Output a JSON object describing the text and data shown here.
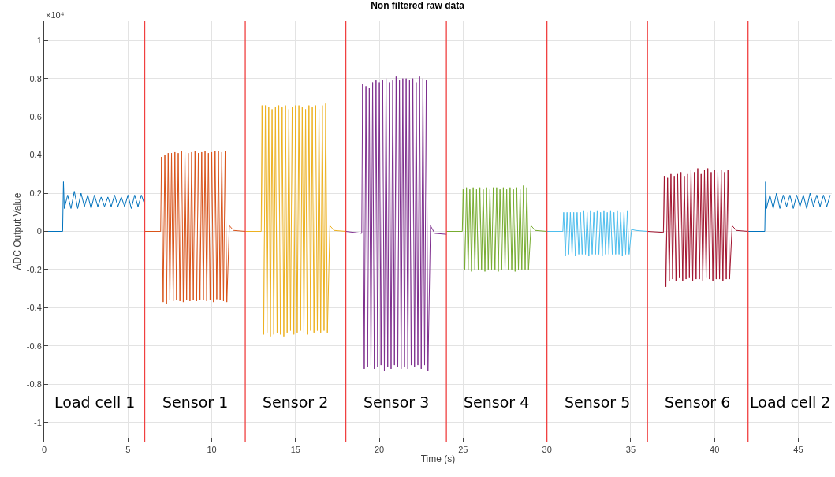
{
  "chart_data": {
    "type": "line",
    "title": "Non filtered raw data",
    "xlabel": "Time (s)",
    "ylabel": "ADC Output Value",
    "xlim": [
      0,
      47
    ],
    "xticks": [
      0,
      5,
      10,
      15,
      20,
      25,
      30,
      35,
      40,
      45
    ],
    "ylim": [
      -1.1,
      1.1
    ],
    "yticks": [
      -1,
      -0.8,
      -0.6,
      -0.4,
      -0.2,
      0,
      0.2,
      0.4,
      0.6,
      0.8,
      1
    ],
    "grid": true,
    "marker": "none",
    "line_style": "solid",
    "series": [
      {
        "color": "#0072bd",
        "x": [
          0,
          1.1,
          1.15,
          1.2,
          1.4,
          1.6,
          1.8,
          2.0,
          2.2,
          2.4,
          2.6,
          2.8,
          3.0,
          3.2,
          3.4,
          3.6,
          3.8,
          4.0,
          4.2,
          4.4,
          4.6,
          4.8,
          5.0,
          5.2,
          5.4,
          5.6,
          5.8,
          6.0
        ],
        "values": [
          0,
          0,
          0.26,
          0.12,
          0.19,
          0.12,
          0.21,
          0.12,
          0.2,
          0.13,
          0.19,
          0.12,
          0.19,
          0.13,
          0.18,
          0.13,
          0.18,
          0.13,
          0.19,
          0.13,
          0.18,
          0.13,
          0.19,
          0.12,
          0.19,
          0.13,
          0.19,
          0.14
        ]
      },
      {
        "color": "#d95319",
        "x": [
          6,
          6.95,
          7,
          7.1,
          7.2,
          7.3,
          7.4,
          7.5,
          7.6,
          7.7,
          7.8,
          7.9,
          8,
          8.1,
          8.2,
          8.3,
          8.4,
          8.5,
          8.6,
          8.7,
          8.8,
          8.9,
          9,
          9.1,
          9.2,
          9.3,
          9.4,
          9.5,
          9.6,
          9.7,
          9.8,
          9.9,
          10,
          10.1,
          10.2,
          10.3,
          10.4,
          10.5,
          10.6,
          10.7,
          10.8,
          10.9,
          11.05,
          11.3,
          12
        ],
        "values": [
          0,
          0,
          0.39,
          -0.37,
          0.4,
          -0.38,
          0.41,
          -0.36,
          0.41,
          -0.365,
          0.415,
          -0.36,
          0.41,
          -0.365,
          0.42,
          -0.37,
          0.415,
          -0.36,
          0.41,
          -0.365,
          0.415,
          -0.36,
          0.42,
          -0.365,
          0.41,
          -0.36,
          0.415,
          -0.36,
          0.42,
          -0.365,
          0.41,
          -0.36,
          0.415,
          -0.37,
          0.42,
          -0.355,
          0.42,
          -0.36,
          0.415,
          -0.365,
          0.42,
          -0.37,
          0.03,
          0.005,
          0
        ]
      },
      {
        "color": "#edb120",
        "x": [
          12,
          12.95,
          13,
          13.1,
          13.2,
          13.3,
          13.4,
          13.5,
          13.6,
          13.7,
          13.8,
          13.9,
          14,
          14.1,
          14.2,
          14.3,
          14.4,
          14.5,
          14.6,
          14.7,
          14.8,
          14.9,
          15,
          15.1,
          15.2,
          15.3,
          15.4,
          15.5,
          15.6,
          15.7,
          15.8,
          15.9,
          16,
          16.1,
          16.2,
          16.3,
          16.4,
          16.5,
          16.6,
          16.7,
          16.8,
          16.9,
          17.05,
          17.3,
          18
        ],
        "values": [
          0,
          0,
          0.66,
          -0.54,
          0.66,
          -0.53,
          0.65,
          -0.55,
          0.64,
          -0.54,
          0.65,
          -0.53,
          0.66,
          -0.54,
          0.65,
          -0.55,
          0.66,
          -0.53,
          0.64,
          -0.52,
          0.65,
          -0.54,
          0.66,
          -0.53,
          0.66,
          -0.52,
          0.65,
          -0.53,
          0.64,
          -0.54,
          0.66,
          -0.52,
          0.65,
          -0.53,
          0.66,
          -0.52,
          0.64,
          -0.53,
          0.66,
          -0.52,
          0.67,
          -0.53,
          0.03,
          0.005,
          0
        ]
      },
      {
        "color": "#7e2f8e",
        "x": [
          18,
          18.95,
          19,
          19.1,
          19.2,
          19.3,
          19.4,
          19.5,
          19.6,
          19.7,
          19.8,
          19.9,
          20,
          20.1,
          20.2,
          20.3,
          20.4,
          20.5,
          20.6,
          20.7,
          20.8,
          20.9,
          21,
          21.1,
          21.2,
          21.3,
          21.4,
          21.5,
          21.6,
          21.7,
          21.8,
          21.9,
          22,
          22.1,
          22.2,
          22.3,
          22.4,
          22.5,
          22.6,
          22.7,
          22.8,
          22.9,
          23.05,
          23.3,
          24
        ],
        "values": [
          0,
          -0.01,
          0.77,
          -0.72,
          0.76,
          -0.71,
          0.75,
          -0.7,
          0.78,
          -0.72,
          0.79,
          -0.71,
          0.78,
          -0.7,
          0.79,
          -0.73,
          0.8,
          -0.71,
          0.78,
          -0.72,
          0.79,
          -0.7,
          0.81,
          -0.71,
          0.79,
          -0.72,
          0.8,
          -0.71,
          0.8,
          -0.72,
          0.79,
          -0.7,
          0.8,
          -0.71,
          0.78,
          -0.7,
          0.81,
          -0.72,
          0.8,
          -0.7,
          0.79,
          -0.73,
          0.03,
          -0.01,
          -0.015
        ]
      },
      {
        "color": "#77ac30",
        "x": [
          24,
          24.95,
          25,
          25.1,
          25.2,
          25.3,
          25.4,
          25.5,
          25.6,
          25.7,
          25.8,
          25.9,
          26,
          26.1,
          26.2,
          26.3,
          26.4,
          26.5,
          26.6,
          26.7,
          26.8,
          26.9,
          27,
          27.1,
          27.2,
          27.3,
          27.4,
          27.5,
          27.6,
          27.7,
          27.8,
          27.9,
          28,
          28.1,
          28.2,
          28.3,
          28.4,
          28.5,
          28.6,
          28.7,
          28.8,
          28.9,
          29.05,
          29.3,
          30
        ],
        "values": [
          0,
          0,
          0.22,
          -0.2,
          0.23,
          -0.2,
          0.22,
          -0.21,
          0.23,
          -0.2,
          0.22,
          -0.2,
          0.23,
          -0.2,
          0.22,
          -0.21,
          0.23,
          -0.2,
          0.22,
          -0.2,
          0.23,
          -0.2,
          0.23,
          -0.21,
          0.22,
          -0.2,
          0.23,
          -0.2,
          0.22,
          -0.2,
          0.23,
          -0.2,
          0.22,
          -0.21,
          0.23,
          -0.2,
          0.22,
          -0.2,
          0.24,
          -0.2,
          0.23,
          -0.2,
          0.03,
          0.005,
          0
        ]
      },
      {
        "color": "#4dbeee",
        "x": [
          30,
          30.95,
          31,
          31.1,
          31.2,
          31.3,
          31.4,
          31.5,
          31.6,
          31.7,
          31.8,
          31.9,
          32,
          32.1,
          32.2,
          32.3,
          32.4,
          32.5,
          32.6,
          32.7,
          32.8,
          32.9,
          33,
          33.1,
          33.2,
          33.3,
          33.4,
          33.5,
          33.6,
          33.7,
          33.8,
          33.9,
          34,
          34.1,
          34.2,
          34.3,
          34.4,
          34.5,
          34.6,
          34.7,
          34.8,
          34.9,
          35.05,
          35.3,
          36
        ],
        "values": [
          0,
          0,
          0.1,
          -0.13,
          0.1,
          -0.12,
          0.1,
          -0.12,
          0.1,
          -0.13,
          0.1,
          -0.12,
          0.1,
          -0.12,
          0.11,
          -0.12,
          0.1,
          -0.13,
          0.11,
          -0.12,
          0.1,
          -0.12,
          0.11,
          -0.12,
          0.1,
          -0.13,
          0.11,
          -0.12,
          0.1,
          -0.12,
          0.11,
          -0.12,
          0.1,
          -0.12,
          0.11,
          -0.12,
          0.1,
          -0.13,
          0.1,
          -0.12,
          0.11,
          -0.12,
          0.01,
          0.005,
          0
        ]
      },
      {
        "color": "#a2142f",
        "x": [
          36,
          36.95,
          37,
          37.1,
          37.2,
          37.3,
          37.4,
          37.5,
          37.6,
          37.7,
          37.8,
          37.9,
          38,
          38.1,
          38.2,
          38.3,
          38.4,
          38.5,
          38.6,
          38.7,
          38.8,
          38.9,
          39,
          39.1,
          39.2,
          39.3,
          39.4,
          39.5,
          39.6,
          39.7,
          39.8,
          39.9,
          40,
          40.1,
          40.2,
          40.3,
          40.4,
          40.5,
          40.6,
          40.7,
          40.8,
          40.9,
          41.05,
          41.3,
          42
        ],
        "values": [
          0,
          -0.005,
          0.29,
          -0.29,
          0.28,
          -0.26,
          0.3,
          -0.25,
          0.29,
          -0.26,
          0.3,
          -0.24,
          0.31,
          -0.26,
          0.29,
          -0.25,
          0.3,
          -0.24,
          0.32,
          -0.26,
          0.31,
          -0.25,
          0.33,
          -0.25,
          0.3,
          -0.26,
          0.32,
          -0.24,
          0.33,
          -0.25,
          0.31,
          -0.26,
          0.32,
          -0.25,
          0.31,
          -0.25,
          0.32,
          -0.26,
          0.31,
          -0.25,
          0.32,
          -0.25,
          0.03,
          0.005,
          0
        ]
      },
      {
        "color": "#0072bd",
        "x": [
          42,
          43.0,
          43.05,
          43.1,
          43.3,
          43.5,
          43.7,
          43.9,
          44.1,
          44.3,
          44.5,
          44.7,
          44.9,
          45.1,
          45.3,
          45.5,
          45.7,
          45.9,
          46.1,
          46.3,
          46.5,
          46.7,
          46.9
        ],
        "values": [
          0,
          0,
          0.26,
          0.12,
          0.19,
          0.12,
          0.2,
          0.12,
          0.19,
          0.13,
          0.19,
          0.12,
          0.19,
          0.13,
          0.19,
          0.12,
          0.2,
          0.13,
          0.19,
          0.13,
          0.19,
          0.13,
          0.19
        ]
      }
    ],
    "ref_lines": [
      {
        "axis": "x",
        "value": 6,
        "color": "#f04040"
      },
      {
        "axis": "x",
        "value": 12,
        "color": "#f04040"
      },
      {
        "axis": "x",
        "value": 18,
        "color": "#f04040"
      },
      {
        "axis": "x",
        "value": 24,
        "color": "#f04040"
      },
      {
        "axis": "x",
        "value": 30,
        "color": "#f04040"
      },
      {
        "axis": "x",
        "value": 36,
        "color": "#f04040"
      },
      {
        "axis": "x",
        "value": 42,
        "color": "#f04040"
      }
    ],
    "annotations": [
      "×10⁴",
      "Load cell 1",
      "Sensor 1",
      "Sensor 2",
      "Sensor 3",
      "Sensor 4",
      "Sensor 5",
      "Sensor 6",
      "Load cell 2"
    ]
  }
}
